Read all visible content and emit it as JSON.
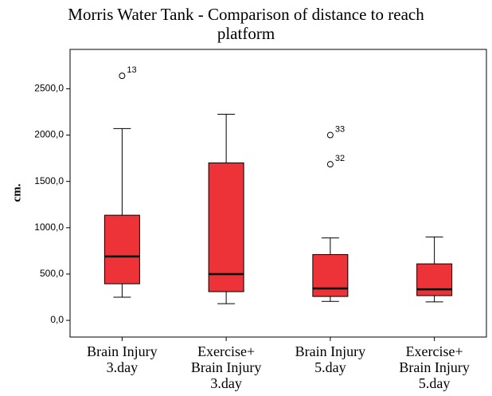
{
  "chart_data": {
    "type": "box",
    "title": [
      "Morris Water Tank - Comparison of distance to reach",
      "platform"
    ],
    "y_label": "cm.",
    "categories": [
      [
        "Brain Injury",
        "3.day"
      ],
      [
        "Exercise+",
        "Brain Injury",
        "3.day"
      ],
      [
        "Brain Injury",
        "5.day"
      ],
      [
        "Exercise+",
        "Brain Injury",
        "5.day"
      ]
    ],
    "boxes": [
      {
        "low": 250,
        "q1": 395,
        "median": 690,
        "q3": 1135,
        "high": 2070,
        "outliers": [
          {
            "value": 2640,
            "label": "13"
          }
        ]
      },
      {
        "low": 180,
        "q1": 310,
        "median": 500,
        "q3": 1700,
        "high": 2225,
        "outliers": []
      },
      {
        "low": 205,
        "q1": 258,
        "median": 345,
        "q3": 710,
        "high": 890,
        "outliers": [
          {
            "value": 2000,
            "label": "33"
          },
          {
            "value": 1685,
            "label": "32"
          }
        ]
      },
      {
        "low": 200,
        "q1": 267,
        "median": 335,
        "q3": 610,
        "high": 900,
        "outliers": []
      }
    ],
    "color": "#ee3338",
    "ylim": [
      -180,
      2925
    ],
    "yticks": [
      {
        "value": 0,
        "label": "0,0"
      },
      {
        "value": 500,
        "label": "500,0"
      },
      {
        "value": 1000,
        "label": "1000,0"
      },
      {
        "value": 1500,
        "label": "1500,0"
      },
      {
        "value": 2000,
        "label": "2000,0"
      },
      {
        "value": 2500,
        "label": "2500,0"
      }
    ]
  }
}
